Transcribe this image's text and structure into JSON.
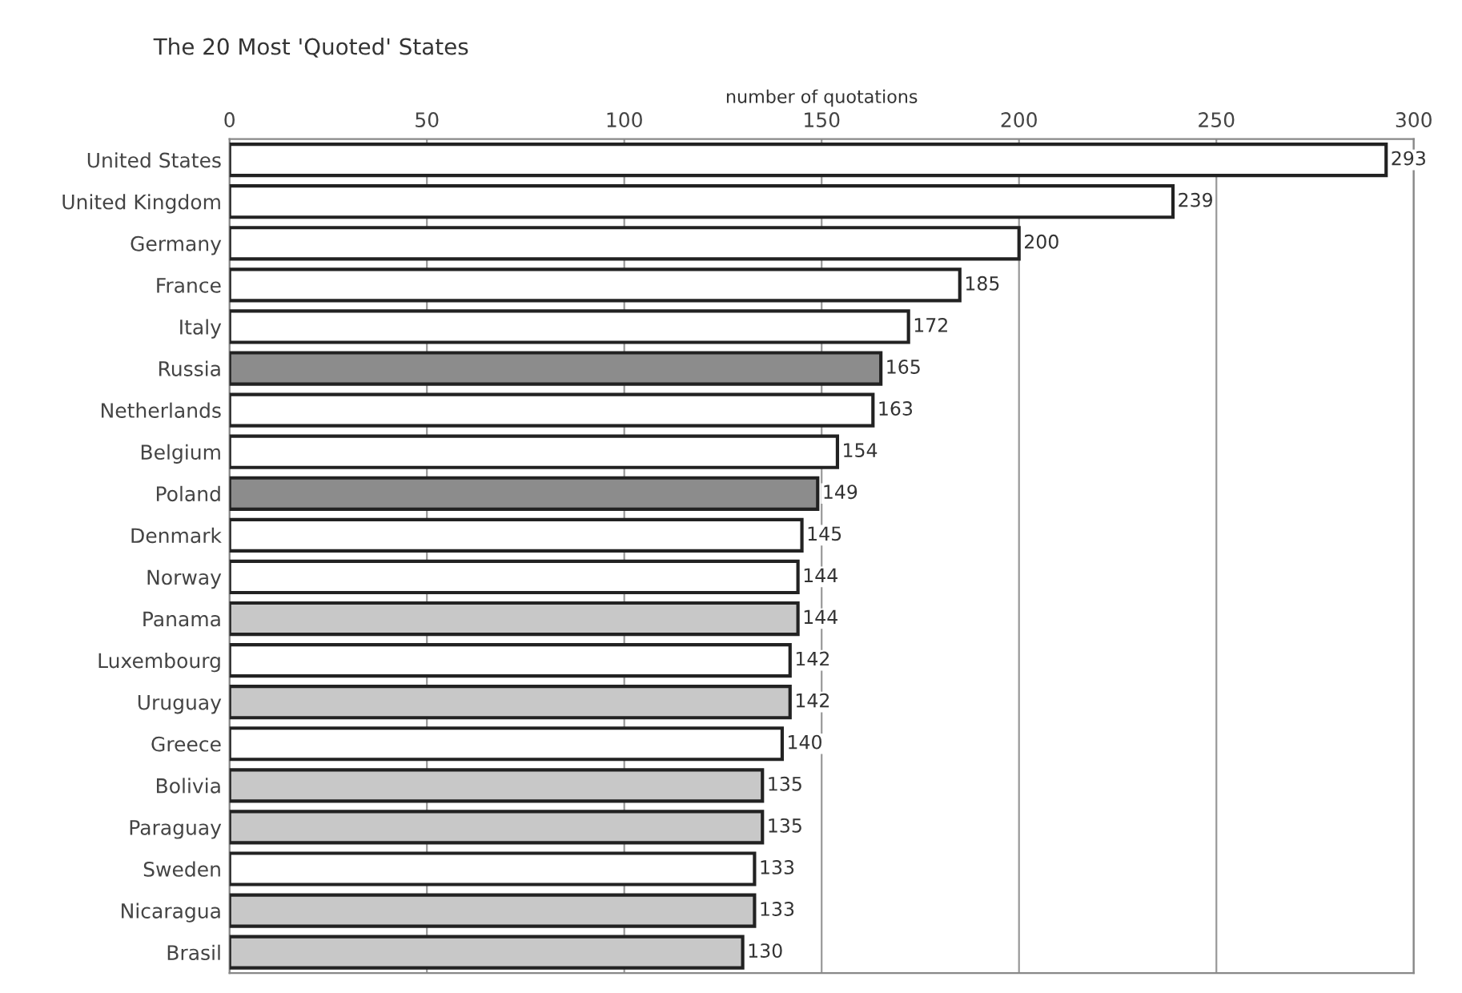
{
  "chart_data": {
    "type": "bar",
    "orientation": "horizontal",
    "title": "The 20 Most 'Quoted' States",
    "xlabel": "number of quotations",
    "categories": [
      "United States",
      "United Kingdom",
      "Germany",
      "France",
      "Italy",
      "Russia",
      "Netherlands",
      "Belgium",
      "Poland",
      "Denmark",
      "Norway",
      "Panama",
      "Luxembourg",
      "Uruguay",
      "Greece",
      "Bolivia",
      "Paraguay",
      "Sweden",
      "Nicaragua",
      "Brasil"
    ],
    "values": [
      293,
      239,
      200,
      185,
      172,
      165,
      163,
      154,
      149,
      145,
      144,
      144,
      142,
      142,
      140,
      135,
      135,
      133,
      133,
      130
    ],
    "colors": [
      "#ffffff",
      "#ffffff",
      "#ffffff",
      "#ffffff",
      "#ffffff",
      "#8c8c8c",
      "#ffffff",
      "#ffffff",
      "#8c8c8c",
      "#ffffff",
      "#ffffff",
      "#c8c8c8",
      "#ffffff",
      "#c8c8c8",
      "#ffffff",
      "#c8c8c8",
      "#c8c8c8",
      "#ffffff",
      "#c8c8c8",
      "#c8c8c8"
    ],
    "xlim": [
      0,
      300
    ],
    "xticks": [
      0,
      50,
      100,
      150,
      200,
      250,
      300
    ],
    "grid": "x",
    "data_labels": true
  }
}
